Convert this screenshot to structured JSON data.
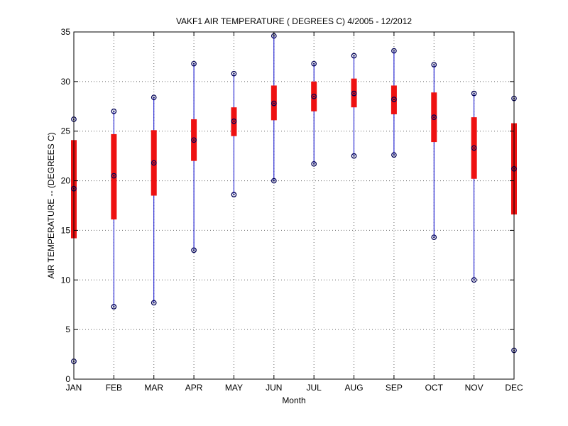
{
  "chart_data": {
    "type": "boxplot",
    "title": "VAKF1  AIR TEMPERATURE ( DEGREES C) 4/2005 - 12/2012",
    "xlabel": "Month",
    "ylabel": "AIR TEMPERATURE -- (DEGREES C)",
    "ylim": [
      0,
      35
    ],
    "yticks": [
      0,
      5,
      10,
      15,
      20,
      25,
      30,
      35
    ],
    "grid": true,
    "categories": [
      "JAN",
      "FEB",
      "MAR",
      "APR",
      "MAY",
      "JUN",
      "JUL",
      "AUG",
      "SEP",
      "OCT",
      "NOV",
      "DEC"
    ],
    "series": [
      {
        "min": [
          1.8,
          7.3,
          7.7,
          13.0,
          18.6,
          20.0,
          21.7,
          22.5,
          22.6,
          14.3,
          10.0,
          2.9
        ],
        "q1": [
          14.2,
          16.1,
          18.5,
          22.0,
          24.5,
          26.1,
          27.0,
          27.4,
          26.7,
          23.9,
          20.2,
          16.6
        ],
        "median": [
          19.2,
          20.5,
          21.8,
          24.1,
          26.0,
          27.8,
          28.5,
          28.8,
          28.2,
          26.4,
          23.3,
          21.2
        ],
        "q3": [
          24.1,
          24.7,
          25.1,
          26.2,
          27.4,
          29.6,
          30.0,
          30.3,
          29.6,
          28.9,
          26.4,
          25.8
        ],
        "max": [
          26.2,
          27.0,
          28.4,
          31.8,
          30.8,
          34.6,
          31.8,
          32.6,
          33.1,
          31.7,
          28.8,
          28.3
        ]
      }
    ],
    "colors": {
      "whisker": "#0000cc",
      "box": "#ee1111",
      "marker": "#000055",
      "grid": "#666666",
      "axis": "#000000"
    }
  }
}
